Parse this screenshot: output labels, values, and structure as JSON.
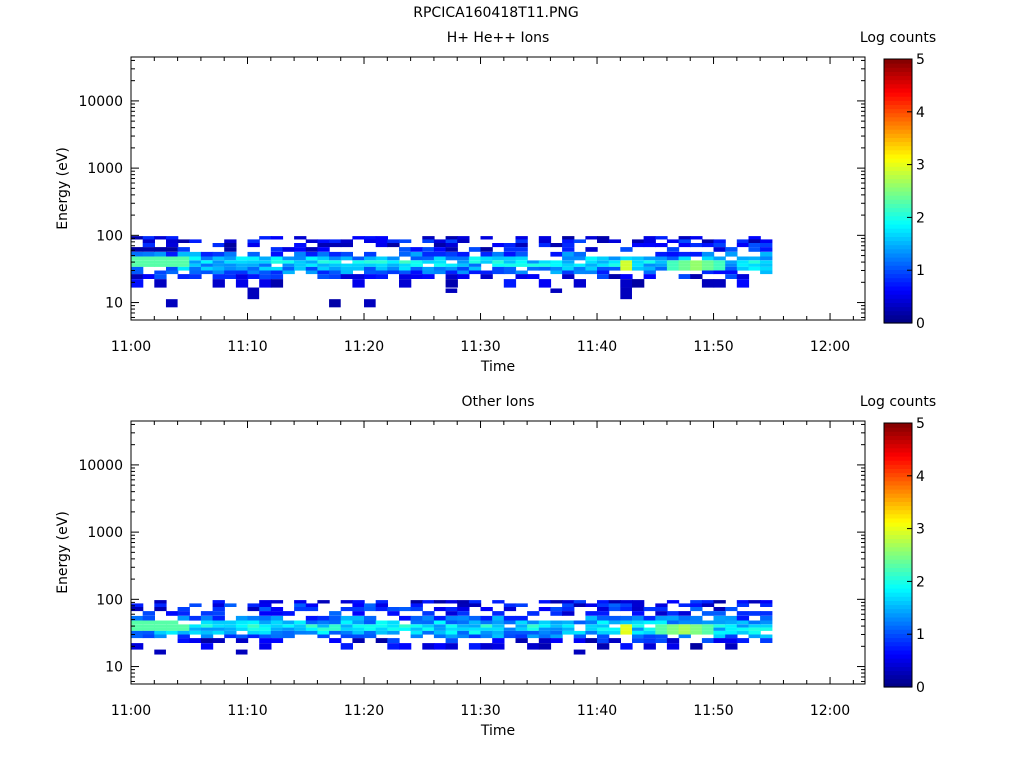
{
  "figure": {
    "title": "RPCICA160418T11.PNG"
  },
  "chart_data": [
    {
      "type": "heatmap",
      "title": "H+ He++ Ions",
      "xlabel": "Time",
      "ylabel": "Energy (eV)",
      "x_ticks": [
        "11:00",
        "11:10",
        "11:20",
        "11:30",
        "11:40",
        "11:50",
        "12:00"
      ],
      "xlim": [
        "11:00",
        "12:03"
      ],
      "y_scale": "log",
      "ylim": [
        5.5,
        45000
      ],
      "y_ticks": [
        10,
        100,
        1000,
        10000
      ],
      "colorbar": {
        "label": "Log counts",
        "range": [
          0,
          5
        ],
        "ticks": [
          "0",
          "1",
          "2",
          "3",
          "4",
          "5"
        ],
        "colormap": "jet"
      },
      "energy_bins": [
        9,
        14,
        20,
        25,
        28,
        32,
        36,
        40,
        45,
        52,
        62,
        72,
        82,
        92
      ],
      "rows": [
        {
          "energy": 92,
          "level": 0.4
        },
        {
          "energy": 82,
          "level": 0.6
        },
        {
          "energy": 72,
          "level": 0.6
        },
        {
          "energy": 62,
          "level": 0.6
        },
        {
          "energy": 52,
          "level": 1.1
        },
        {
          "energy": 45,
          "level": 1.5
        },
        {
          "energy": 40,
          "level": 1.8
        },
        {
          "energy": 36,
          "level": 1.6
        },
        {
          "energy": 32,
          "level": 1.4
        },
        {
          "energy": 28,
          "level": 1.1
        },
        {
          "energy": 25,
          "level": 0.6
        },
        {
          "energy": 20,
          "level": 0.3
        }
      ],
      "time_range": [
        "11:00",
        "11:55"
      ],
      "peak": {
        "time": "11:42",
        "energy": 36,
        "level": 2.9
      },
      "secondary_peak": {
        "time": "11:48",
        "energy": 36,
        "level": 2.6
      },
      "sparse_points": [
        {
          "time": "11:03",
          "energy": 9,
          "level": 0.3
        },
        {
          "time": "11:10",
          "energy": 14,
          "level": 0.3
        },
        {
          "time": "11:17",
          "energy": 9,
          "level": 0.2
        },
        {
          "time": "11:20",
          "energy": 9,
          "level": 0.3
        },
        {
          "time": "11:27",
          "energy": 15,
          "level": 0.3
        },
        {
          "time": "11:36",
          "energy": 15,
          "level": 0.3
        },
        {
          "time": "11:42",
          "energy": 14,
          "level": 0.3
        }
      ]
    },
    {
      "type": "heatmap",
      "title": "Other Ions",
      "xlabel": "Time",
      "ylabel": "Energy (eV)",
      "x_ticks": [
        "11:00",
        "11:10",
        "11:20",
        "11:30",
        "11:40",
        "11:50",
        "12:00"
      ],
      "xlim": [
        "11:00",
        "12:03"
      ],
      "y_scale": "log",
      "ylim": [
        5.5,
        45000
      ],
      "y_ticks": [
        10,
        100,
        1000,
        10000
      ],
      "colorbar": {
        "label": "Log counts",
        "range": [
          0,
          5
        ],
        "ticks": [
          "0",
          "1",
          "2",
          "3",
          "4",
          "5"
        ],
        "colormap": "jet"
      },
      "energy_bins": [
        16,
        20,
        25,
        28,
        32,
        36,
        40,
        45,
        52,
        62,
        72,
        82,
        92
      ],
      "rows": [
        {
          "energy": 92,
          "level": 0.5
        },
        {
          "energy": 82,
          "level": 0.7
        },
        {
          "energy": 72,
          "level": 0.7
        },
        {
          "energy": 62,
          "level": 0.7
        },
        {
          "energy": 52,
          "level": 1.1
        },
        {
          "energy": 45,
          "level": 1.5
        },
        {
          "energy": 40,
          "level": 1.8
        },
        {
          "energy": 36,
          "level": 1.7
        },
        {
          "energy": 32,
          "level": 1.5
        },
        {
          "energy": 28,
          "level": 1.2
        },
        {
          "energy": 25,
          "level": 0.6
        },
        {
          "energy": 20,
          "level": 0.3
        }
      ],
      "time_range": [
        "11:00",
        "11:55"
      ],
      "peak": {
        "time": "11:42",
        "energy": 36,
        "level": 3.0
      },
      "secondary_peak": {
        "time": "11:47",
        "energy": 36,
        "level": 2.7
      },
      "sparse_points": [
        {
          "time": "11:02",
          "energy": 16,
          "level": 0.3
        },
        {
          "time": "11:09",
          "energy": 16,
          "level": 0.3
        },
        {
          "time": "11:38",
          "energy": 16,
          "level": 0.3
        }
      ]
    }
  ]
}
